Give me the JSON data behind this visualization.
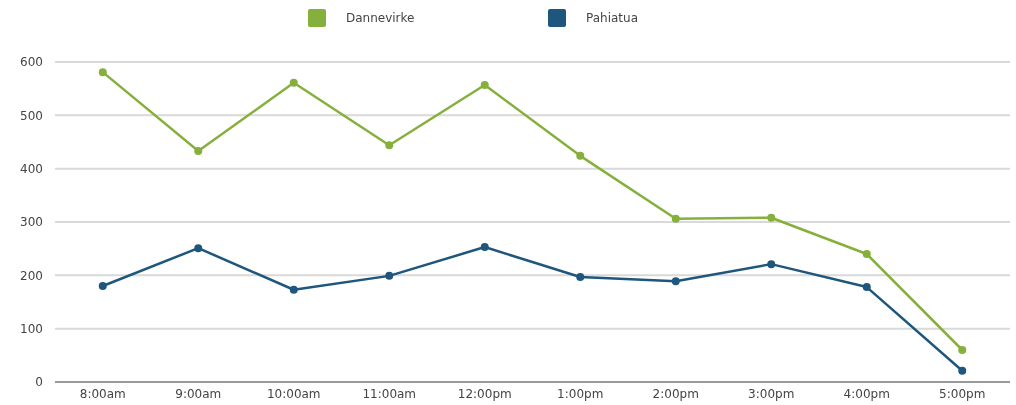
{
  "chart_data": {
    "type": "line",
    "categories": [
      "8:00am",
      "9:00am",
      "10:00am",
      "11:00am",
      "12:00pm",
      "1:00pm",
      "2:00pm",
      "3:00pm",
      "4:00pm",
      "5:00pm"
    ],
    "series": [
      {
        "name": "Dannevirke",
        "color": "#86b03c",
        "values": [
          581,
          433,
          561,
          444,
          557,
          424,
          306,
          308,
          240,
          60
        ]
      },
      {
        "name": "Pahiatua",
        "color": "#1f567d",
        "values": [
          180,
          251,
          173,
          199,
          253,
          197,
          189,
          221,
          178,
          21
        ]
      }
    ],
    "ylim": [
      0,
      600
    ],
    "yticks": [
      0,
      100,
      200,
      300,
      400,
      500,
      600
    ],
    "grid": "y",
    "legend": "top",
    "marker": "circle",
    "line_style": "solid"
  }
}
